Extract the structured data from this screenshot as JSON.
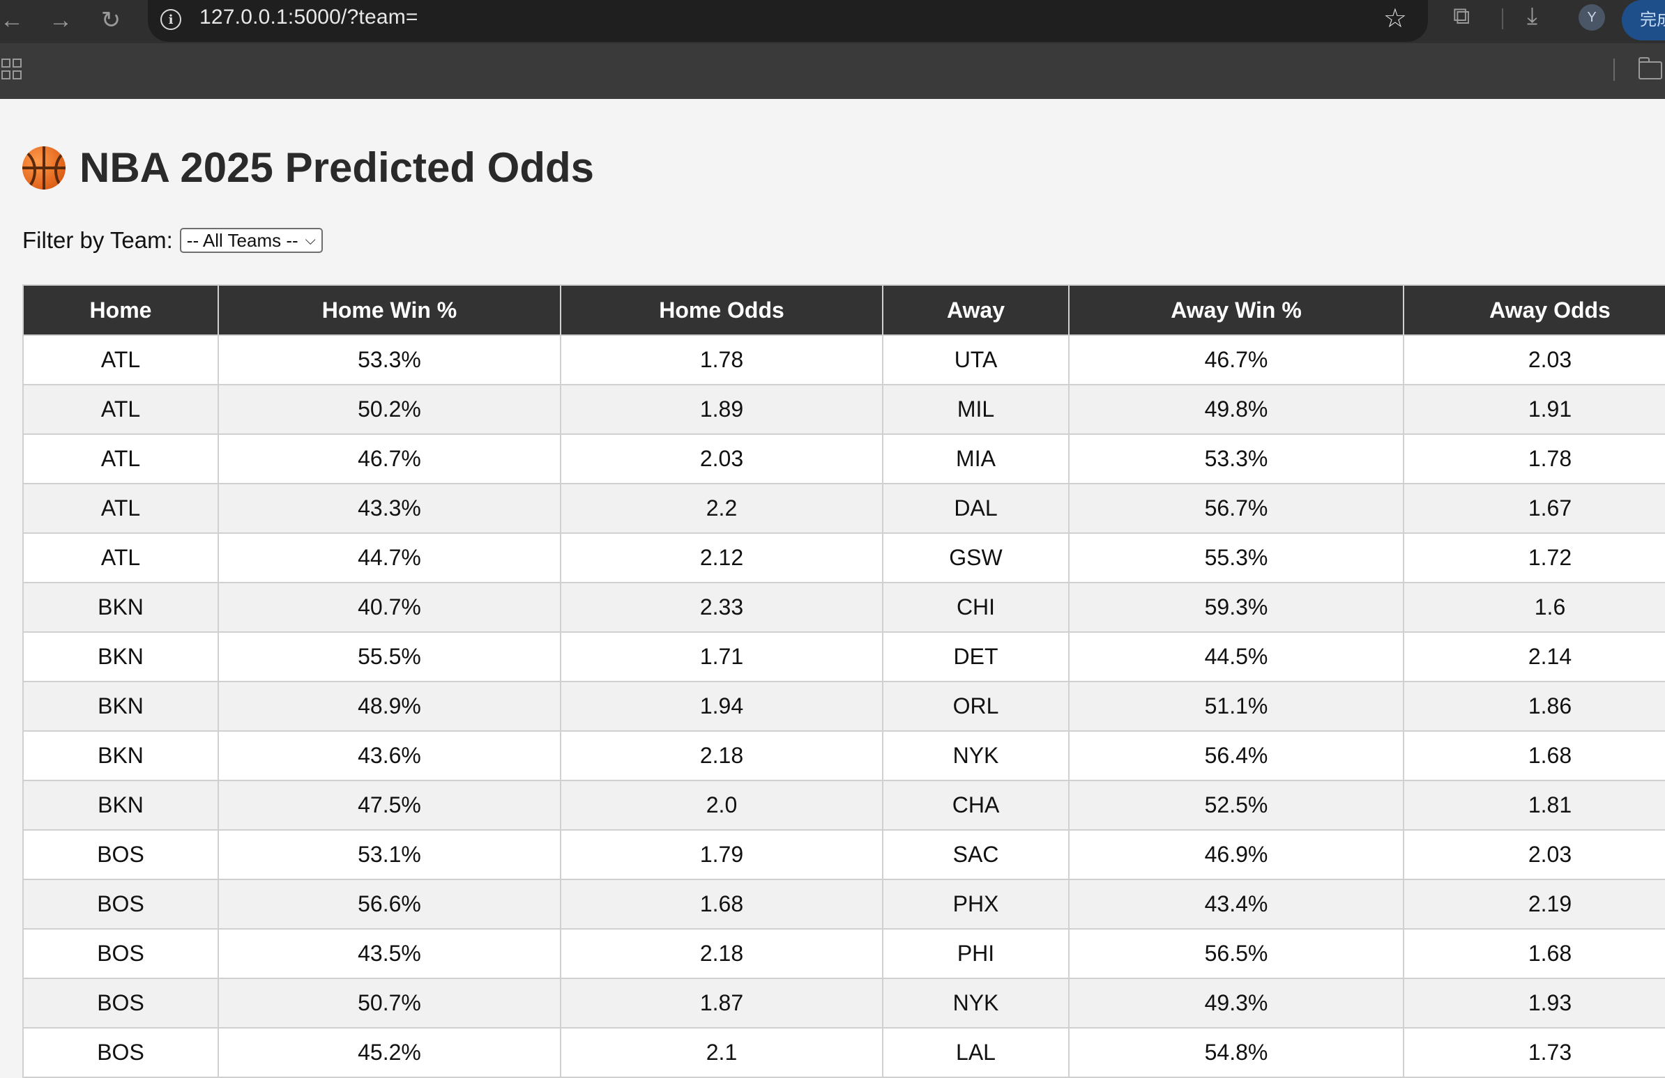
{
  "browser": {
    "url": "127.0.0.1:5000/?team=",
    "profile_initial": "Y",
    "update_label": "完成"
  },
  "page": {
    "title": "NBA 2025 Predicted Odds",
    "filter_label": "Filter by Team:",
    "filter_selected": "-- All Teams --"
  },
  "table": {
    "headers": [
      "Home",
      "Home Win %",
      "Home Odds",
      "Away",
      "Away Win %",
      "Away Odds"
    ],
    "rows": [
      [
        "ATL",
        "53.3%",
        "1.78",
        "UTA",
        "46.7%",
        "2.03"
      ],
      [
        "ATL",
        "50.2%",
        "1.89",
        "MIL",
        "49.8%",
        "1.91"
      ],
      [
        "ATL",
        "46.7%",
        "2.03",
        "MIA",
        "53.3%",
        "1.78"
      ],
      [
        "ATL",
        "43.3%",
        "2.2",
        "DAL",
        "56.7%",
        "1.67"
      ],
      [
        "ATL",
        "44.7%",
        "2.12",
        "GSW",
        "55.3%",
        "1.72"
      ],
      [
        "BKN",
        "40.7%",
        "2.33",
        "CHI",
        "59.3%",
        "1.6"
      ],
      [
        "BKN",
        "55.5%",
        "1.71",
        "DET",
        "44.5%",
        "2.14"
      ],
      [
        "BKN",
        "48.9%",
        "1.94",
        "ORL",
        "51.1%",
        "1.86"
      ],
      [
        "BKN",
        "43.6%",
        "2.18",
        "NYK",
        "56.4%",
        "1.68"
      ],
      [
        "BKN",
        "47.5%",
        "2.0",
        "CHA",
        "52.5%",
        "1.81"
      ],
      [
        "BOS",
        "53.1%",
        "1.79",
        "SAC",
        "46.9%",
        "2.03"
      ],
      [
        "BOS",
        "56.6%",
        "1.68",
        "PHX",
        "43.4%",
        "2.19"
      ],
      [
        "BOS",
        "43.5%",
        "2.18",
        "PHI",
        "56.5%",
        "1.68"
      ],
      [
        "BOS",
        "50.7%",
        "1.87",
        "NYK",
        "49.3%",
        "1.93"
      ],
      [
        "BOS",
        "45.2%",
        "2.1",
        "LAL",
        "54.8%",
        "1.73"
      ]
    ]
  }
}
